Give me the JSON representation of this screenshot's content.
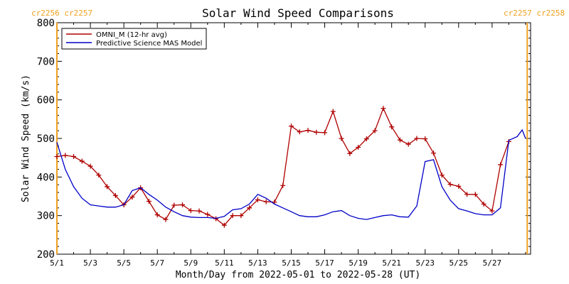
{
  "chart_data": {
    "type": "line",
    "title": "Solar Wind Speed Comparisons",
    "xlabel": "Month/Day from 2022-05-01 to 2022-05-28 (UT)",
    "ylabel": "Solar Wind Speed (km/s)",
    "ylim": [
      200,
      800
    ],
    "xlim": [
      1,
      29.3
    ],
    "y_ticks": [
      200,
      300,
      400,
      500,
      600,
      700,
      800
    ],
    "x_ticks": [
      1,
      3,
      5,
      7,
      9,
      11,
      13,
      15,
      17,
      19,
      21,
      23,
      25,
      27
    ],
    "x_tick_labels": [
      "5/1",
      "5/3",
      "5/5",
      "5/7",
      "5/9",
      "5/11",
      "5/13",
      "5/15",
      "5/17",
      "5/19",
      "5/21",
      "5/23",
      "5/25",
      "5/27"
    ],
    "grid": false,
    "legend_position": "top-left",
    "carrington_labels": {
      "left": "cr2256 cr2257",
      "right": "cr2257 cr2258"
    },
    "carrington_lines_x": [
      1,
      29.1
    ],
    "series": [
      {
        "name": "OMNI_M (12-hr avg)",
        "color": "#b00000",
        "marker": "plus",
        "x": [
          1.0,
          1.5,
          2.0,
          2.5,
          3.0,
          3.5,
          4.0,
          4.5,
          5.0,
          5.5,
          6.0,
          6.5,
          7.0,
          7.5,
          8.0,
          8.5,
          9.0,
          9.5,
          10.0,
          10.5,
          11.0,
          11.5,
          12.0,
          12.5,
          13.0,
          13.5,
          14.0,
          14.5,
          15.0,
          15.5,
          16.0,
          16.5,
          17.0,
          17.5,
          18.0,
          18.5,
          19.0,
          19.5,
          20.0,
          20.5,
          21.0,
          21.5,
          22.0,
          22.5,
          23.0,
          23.5,
          24.0,
          24.5,
          25.0,
          25.5,
          26.0,
          26.5,
          27.0,
          27.5,
          28.0,
          28.5,
          29.0
        ],
        "y": [
          453,
          456,
          453,
          441,
          428,
          405,
          375,
          352,
          328,
          348,
          372,
          337,
          302,
          290,
          327,
          328,
          313,
          312,
          303,
          292,
          275,
          300,
          300,
          320,
          341,
          336,
          335,
          378,
          532,
          517,
          521,
          516,
          515,
          570,
          500,
          461,
          477,
          499,
          520,
          578,
          530,
          496,
          485,
          500,
          499,
          462,
          405,
          381,
          376,
          355,
          355,
          330,
          312,
          432,
          492,
          null,
          null
        ]
      },
      {
        "name": "Predictive Science MAS Model",
        "color": "#0000c8",
        "marker": "none",
        "x": [
          1.0,
          1.5,
          2.0,
          2.5,
          3.0,
          3.5,
          4.0,
          4.5,
          5.0,
          5.5,
          6.0,
          6.5,
          7.0,
          7.5,
          8.0,
          8.5,
          9.0,
          9.5,
          10.0,
          10.5,
          11.0,
          11.5,
          12.0,
          12.5,
          13.0,
          13.5,
          14.0,
          14.5,
          15.0,
          15.5,
          16.0,
          16.5,
          17.0,
          17.5,
          18.0,
          18.5,
          19.0,
          19.5,
          20.0,
          20.5,
          21.0,
          21.5,
          22.0,
          22.5,
          23.0,
          23.5,
          24.0,
          24.5,
          25.0,
          25.5,
          26.0,
          26.5,
          27.0,
          27.5,
          28.0,
          28.5,
          28.8,
          29.0
        ],
        "y": [
          490,
          420,
          375,
          345,
          328,
          325,
          322,
          322,
          328,
          365,
          372,
          355,
          340,
          322,
          310,
          300,
          296,
          295,
          295,
          293,
          298,
          315,
          318,
          330,
          355,
          345,
          330,
          320,
          310,
          300,
          297,
          297,
          302,
          310,
          313,
          300,
          293,
          290,
          295,
          300,
          302,
          297,
          296,
          325,
          440,
          445,
          375,
          340,
          318,
          312,
          305,
          302,
          302,
          320,
          495,
          505,
          522,
          500
        ]
      }
    ]
  }
}
